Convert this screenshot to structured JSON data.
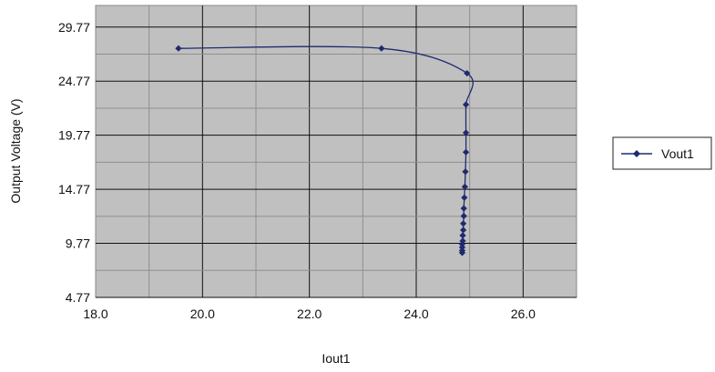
{
  "chart_data": {
    "type": "line",
    "xlabel": "Iout1",
    "ylabel": "Output Voltage (V)",
    "xlim": [
      18.0,
      27.0
    ],
    "ylim": [
      4.77,
      31.77
    ],
    "x_ticks": [
      "18.0",
      "20.0",
      "22.0",
      "24.0",
      "26.0"
    ],
    "x_tick_values": [
      18,
      20,
      22,
      24,
      26
    ],
    "y_ticks": [
      "4.77",
      "9.77",
      "14.77",
      "19.77",
      "24.77",
      "29.77"
    ],
    "y_tick_values": [
      4.77,
      9.77,
      14.77,
      19.77,
      24.77,
      29.77
    ],
    "grid": true,
    "legend_position": "right",
    "plot_background": "#c0c0c0",
    "series": [
      {
        "name": "Vout1",
        "color": "#1f2a6e",
        "x": [
          19.55,
          23.35,
          24.95,
          24.93,
          24.93,
          24.93,
          24.92,
          24.91,
          24.9,
          24.89,
          24.89,
          24.88,
          24.88,
          24.87,
          24.87,
          24.86,
          24.86,
          24.86,
          24.86
        ],
        "y": [
          27.8,
          27.8,
          25.5,
          22.6,
          20.0,
          18.2,
          16.4,
          15.0,
          14.0,
          13.0,
          12.3,
          11.6,
          11.0,
          10.5,
          10.0,
          9.7,
          9.4,
          9.1,
          8.9
        ]
      }
    ]
  }
}
